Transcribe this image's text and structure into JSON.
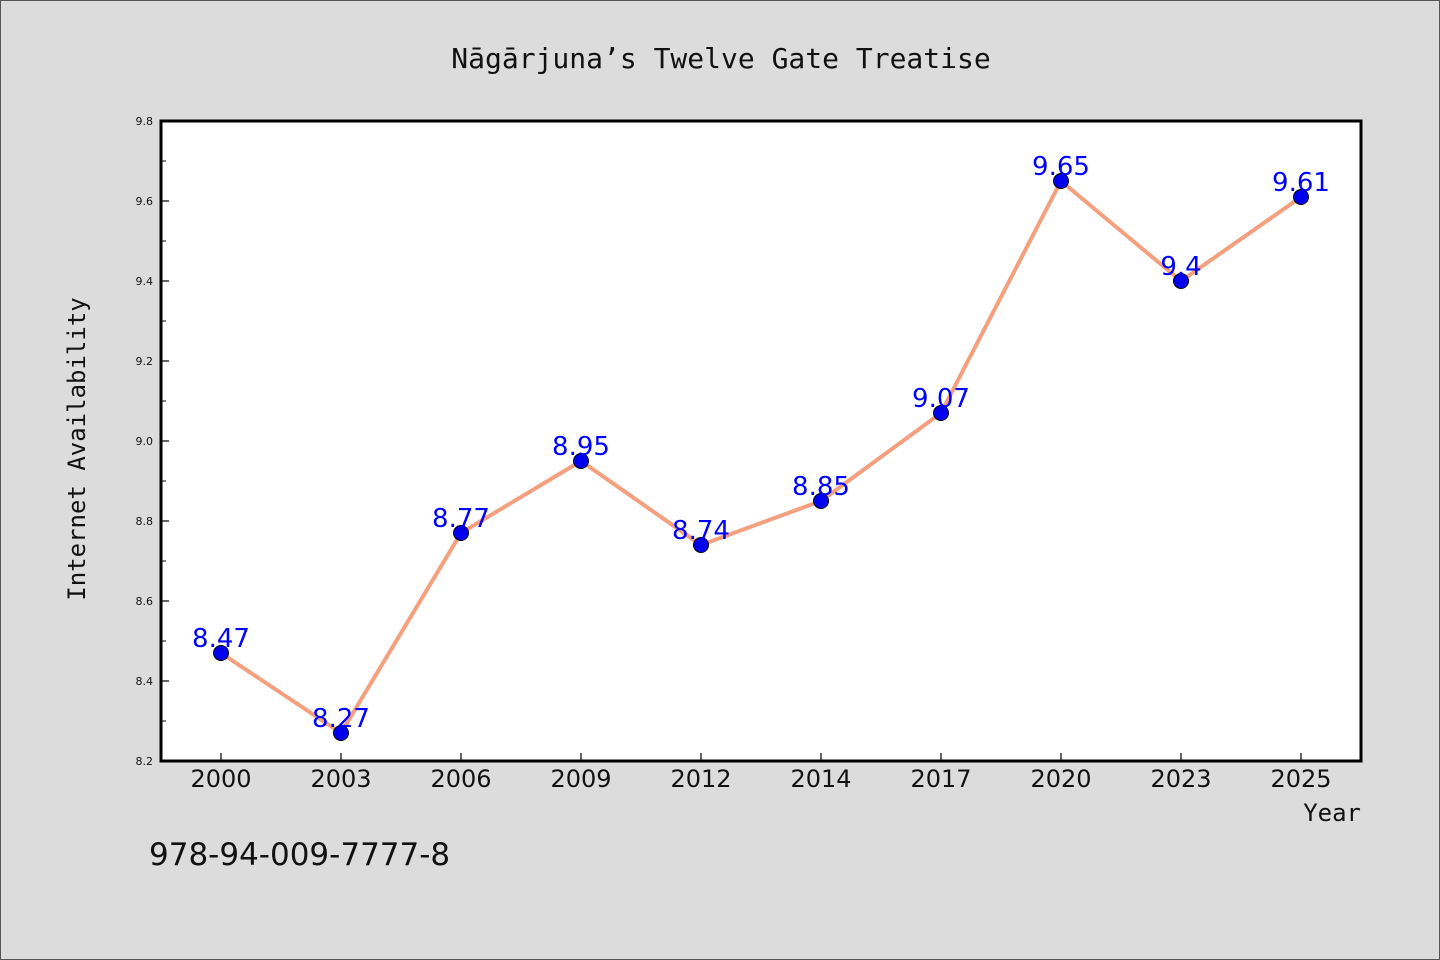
{
  "chart_data": {
    "type": "line",
    "title": "Nāgārjuna’s Twelve Gate Treatise",
    "xlabel": "Year",
    "ylabel": "Internet Availability",
    "categories": [
      "2000",
      "2003",
      "2006",
      "2009",
      "2012",
      "2014",
      "2017",
      "2020",
      "2023",
      "2025"
    ],
    "series": [
      {
        "values": [
          8.47,
          8.27,
          8.77,
          8.95,
          8.74,
          8.85,
          9.07,
          9.65,
          9.4,
          9.61
        ],
        "labels": [
          "8.47",
          "8.27",
          "8.77",
          "8.95",
          "8.74",
          "8.85",
          "9.07",
          "9.65",
          "9.4",
          "9.61"
        ],
        "line_color": "#f4a07e",
        "marker_color": "#0000ee",
        "label_color": "#0000ff"
      }
    ],
    "ylim": [
      8.2,
      9.8
    ],
    "yticks": [
      "8.2",
      "8.4",
      "8.6",
      "8.8",
      "9.0",
      "9.2",
      "9.4",
      "9.6",
      "9.8"
    ],
    "grid": false,
    "legend": "none"
  },
  "footer_text": "978-94-009-7777-8"
}
